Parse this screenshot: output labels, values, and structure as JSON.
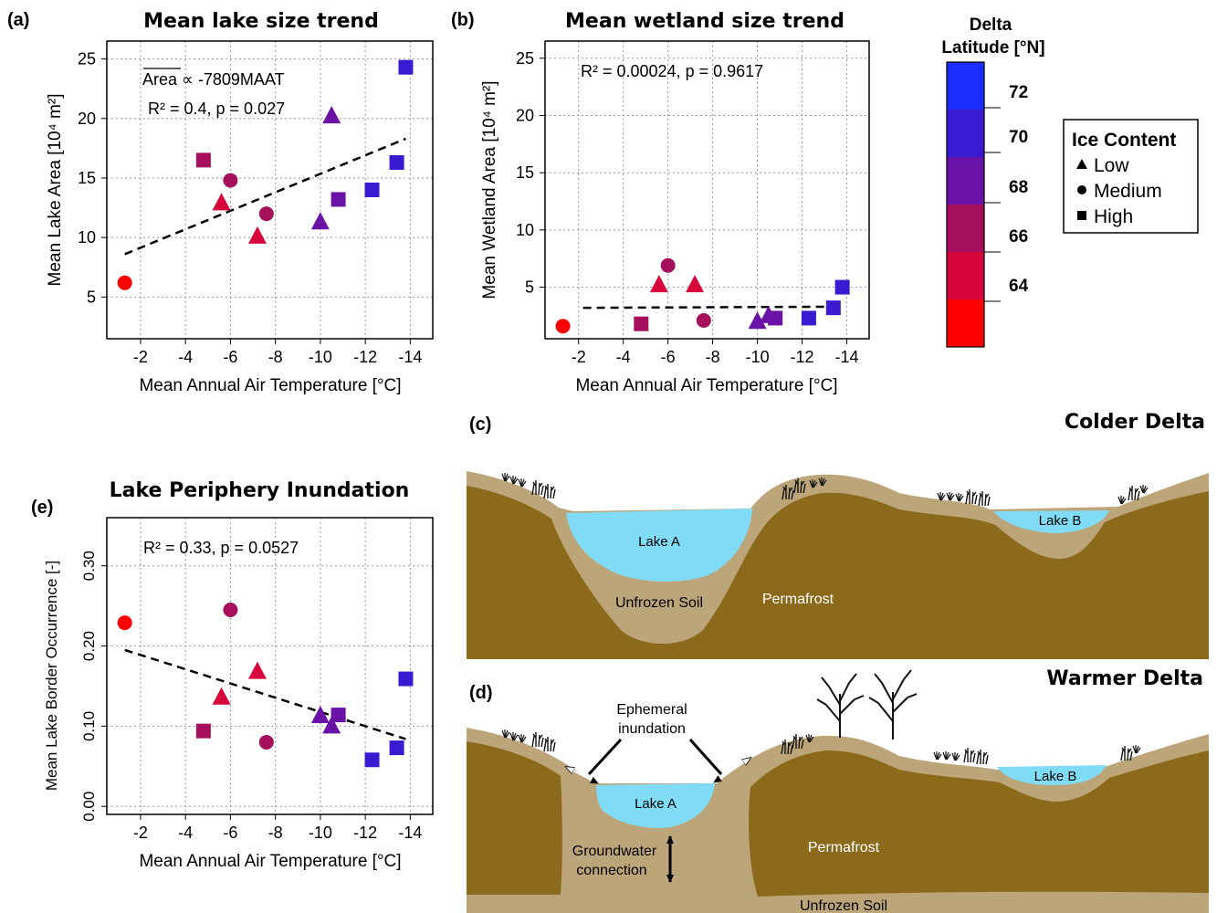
{
  "colors": {
    "lat_palette": [
      "#ff0000",
      "#d6063a",
      "#a50f5c",
      "#6a12a8",
      "#3a1ad0",
      "#1a2cff"
    ],
    "lake_fill": "#80dcf6",
    "soil_light": "#bda57a",
    "permafrost": "#8c6a1c"
  },
  "legend_lat": {
    "title_line1": "Delta",
    "title_line2": "Latitude [°N]",
    "ticks": [
      "72",
      "70",
      "68",
      "66",
      "64"
    ]
  },
  "legend_ice": {
    "title": "Ice Content",
    "items": [
      {
        "shape": "triangle",
        "label": "Low"
      },
      {
        "shape": "circle",
        "label": "Medium"
      },
      {
        "shape": "square",
        "label": "High"
      }
    ]
  },
  "chart_data": [
    {
      "panel": "(a)",
      "type": "scatter",
      "title": "Mean lake size trend",
      "xlabel": "Mean Annual Air Temperature [°C]",
      "ylabel": "Mean Lake Area [10⁴ m²]",
      "xlim": [
        -0.5,
        -15
      ],
      "ylim": [
        1.5,
        26.5
      ],
      "xticks": [
        "-2",
        "-4",
        "-6",
        "-8",
        "-10",
        "-12",
        "-14"
      ],
      "yticks": [
        "5",
        "10",
        "15",
        "20",
        "25"
      ],
      "annotation_line1": "Area ∝ -7809MAAT",
      "annotation_line2": "R² = 0.4, p = 0.027",
      "trend": {
        "x": [
          -1.3,
          -13.8
        ],
        "y": [
          8.6,
          18.3
        ]
      },
      "points": [
        {
          "x": -1.3,
          "y": 6.2,
          "shape": "circle",
          "lat": 63
        },
        {
          "x": -4.8,
          "y": 16.5,
          "shape": "square",
          "lat": 66
        },
        {
          "x": -5.6,
          "y": 12.9,
          "shape": "triangle",
          "lat": 65
        },
        {
          "x": -6.0,
          "y": 14.8,
          "shape": "circle",
          "lat": 66
        },
        {
          "x": -7.2,
          "y": 10.1,
          "shape": "triangle",
          "lat": 65
        },
        {
          "x": -7.6,
          "y": 12.0,
          "shape": "circle",
          "lat": 67
        },
        {
          "x": -10.0,
          "y": 11.3,
          "shape": "triangle",
          "lat": 69
        },
        {
          "x": -10.5,
          "y": 20.2,
          "shape": "triangle",
          "lat": 69
        },
        {
          "x": -10.8,
          "y": 13.2,
          "shape": "square",
          "lat": 68
        },
        {
          "x": -12.3,
          "y": 14.0,
          "shape": "square",
          "lat": 72
        },
        {
          "x": -13.4,
          "y": 16.3,
          "shape": "square",
          "lat": 72
        },
        {
          "x": -13.8,
          "y": 24.3,
          "shape": "square",
          "lat": 71
        }
      ]
    },
    {
      "panel": "(b)",
      "type": "scatter",
      "title": "Mean wetland size trend",
      "xlabel": "Mean Annual Air Temperature [°C]",
      "ylabel": "Mean Wetland Area [10⁴ m²]",
      "xlim": [
        -0.5,
        -15
      ],
      "ylim": [
        0.5,
        26.5
      ],
      "xticks": [
        "-2",
        "-4",
        "-6",
        "-8",
        "-10",
        "-12",
        "-14"
      ],
      "yticks": [
        "5",
        "10",
        "15",
        "20",
        "25"
      ],
      "annotation_line1": "R² = 0.00024, p = 0.9617",
      "trend": {
        "x": [
          -2.2,
          -13.6
        ],
        "y": [
          3.2,
          3.3
        ]
      },
      "points": [
        {
          "x": -1.3,
          "y": 1.6,
          "shape": "circle",
          "lat": 63
        },
        {
          "x": -4.8,
          "y": 1.8,
          "shape": "square",
          "lat": 66
        },
        {
          "x": -5.6,
          "y": 5.2,
          "shape": "triangle",
          "lat": 65
        },
        {
          "x": -6.0,
          "y": 6.9,
          "shape": "circle",
          "lat": 66
        },
        {
          "x": -7.2,
          "y": 5.2,
          "shape": "triangle",
          "lat": 65
        },
        {
          "x": -7.6,
          "y": 2.1,
          "shape": "circle",
          "lat": 67
        },
        {
          "x": -10.0,
          "y": 2.0,
          "shape": "triangle",
          "lat": 69
        },
        {
          "x": -10.5,
          "y": 2.5,
          "shape": "triangle",
          "lat": 69
        },
        {
          "x": -10.8,
          "y": 2.3,
          "shape": "square",
          "lat": 68
        },
        {
          "x": -12.3,
          "y": 2.3,
          "shape": "square",
          "lat": 72
        },
        {
          "x": -13.4,
          "y": 3.2,
          "shape": "square",
          "lat": 72
        },
        {
          "x": -13.8,
          "y": 5.0,
          "shape": "square",
          "lat": 71
        }
      ]
    },
    {
      "panel": "(e)",
      "type": "scatter",
      "title": "Lake Periphery Inundation",
      "xlabel": "Mean Annual Air Temperature [°C]",
      "ylabel": "Mean Lake Border Occurrence [-]",
      "xlim": [
        -0.5,
        -15
      ],
      "ylim": [
        -0.01,
        0.36
      ],
      "xticks": [
        "-2",
        "-4",
        "-6",
        "-8",
        "-10",
        "-12",
        "-14"
      ],
      "yticks": [
        "0.00",
        "0.10",
        "0.20",
        "0.30"
      ],
      "annotation_line1": "R² = 0.33, p = 0.0527",
      "trend": {
        "x": [
          -1.3,
          -13.8
        ],
        "y": [
          0.195,
          0.084
        ]
      },
      "points": [
        {
          "x": -1.3,
          "y": 0.229,
          "shape": "circle",
          "lat": 63
        },
        {
          "x": -4.8,
          "y": 0.094,
          "shape": "square",
          "lat": 66
        },
        {
          "x": -5.6,
          "y": 0.136,
          "shape": "triangle",
          "lat": 65
        },
        {
          "x": -6.0,
          "y": 0.245,
          "shape": "circle",
          "lat": 66
        },
        {
          "x": -7.2,
          "y": 0.168,
          "shape": "triangle",
          "lat": 65
        },
        {
          "x": -7.6,
          "y": 0.08,
          "shape": "circle",
          "lat": 67
        },
        {
          "x": -10.0,
          "y": 0.113,
          "shape": "triangle",
          "lat": 69
        },
        {
          "x": -10.5,
          "y": 0.1,
          "shape": "triangle",
          "lat": 69
        },
        {
          "x": -10.8,
          "y": 0.114,
          "shape": "square",
          "lat": 68
        },
        {
          "x": -12.3,
          "y": 0.058,
          "shape": "square",
          "lat": 72
        },
        {
          "x": -13.4,
          "y": 0.073,
          "shape": "square",
          "lat": 72
        },
        {
          "x": -13.8,
          "y": 0.159,
          "shape": "square",
          "lat": 71
        }
      ]
    }
  ],
  "diagram_c": {
    "panel": "(c)",
    "title": "Colder Delta",
    "lake_a": "Lake A",
    "lake_b": "Lake B",
    "unfrozen": "Unfrozen Soil",
    "permafrost": "Permafrost"
  },
  "diagram_d": {
    "panel": "(d)",
    "title": "Warmer Delta",
    "lake_a": "Lake A",
    "lake_b": "Lake B",
    "ephemeral_line1": "Ephemeral",
    "ephemeral_line2": "inundation",
    "gw_line1": "Groundwater",
    "gw_line2": "connection",
    "permafrost": "Permafrost",
    "unfrozen": "Unfrozen Soil"
  }
}
